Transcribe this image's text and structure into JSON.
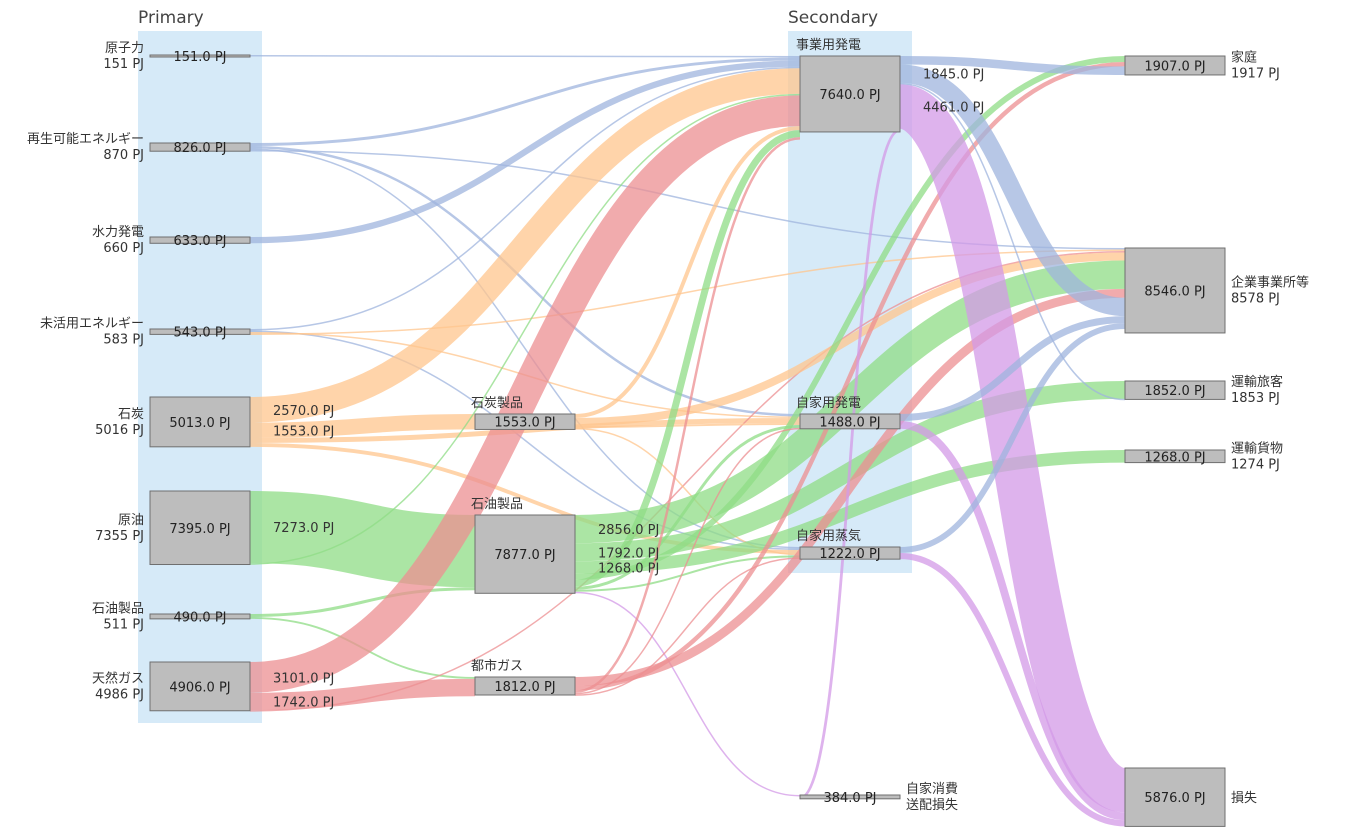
{
  "chart_data": {
    "type": "sankey",
    "column_titles": {
      "primary": "Primary",
      "secondary": "Secondary"
    },
    "colors": {
      "nuclear": "#9fb4dd",
      "coal": "#ffc68e",
      "oil": "#8fdc86",
      "gas": "#ec8f92",
      "loss": "#d39ae7",
      "column_band": "#d6eaf8",
      "node": "#bdbdbd"
    },
    "nodes": [
      {
        "id": "nuclear",
        "name": "原子力",
        "total": "151 PJ",
        "value": "151.0 PJ"
      },
      {
        "id": "renewable",
        "name": "再生可能エネルギー",
        "total": "870 PJ",
        "value": "826.0 PJ"
      },
      {
        "id": "hydro",
        "name": "水力発電",
        "total": "660 PJ",
        "value": "633.0 PJ"
      },
      {
        "id": "unused",
        "name": "未活用エネルギー",
        "total": "583 PJ",
        "value": "543.0 PJ"
      },
      {
        "id": "coal",
        "name": "石炭",
        "total": "5016 PJ",
        "value": "5013.0 PJ"
      },
      {
        "id": "crude",
        "name": "原油",
        "total": "7355 PJ",
        "value": "7395.0 PJ"
      },
      {
        "id": "oilprod_in",
        "name": "石油製品",
        "total": "511 PJ",
        "value": "490.0 PJ"
      },
      {
        "id": "natgas",
        "name": "天然ガス",
        "total": "4986 PJ",
        "value": "4906.0 PJ"
      },
      {
        "id": "coalprod",
        "name": "石炭製品",
        "total": "",
        "value": "1553.0 PJ"
      },
      {
        "id": "oilprod",
        "name": "石油製品",
        "total": "",
        "value": "7877.0 PJ"
      },
      {
        "id": "citygas",
        "name": "都市ガス",
        "total": "",
        "value": "1812.0 PJ"
      },
      {
        "id": "utility",
        "name": "事業用発電",
        "total": "",
        "value": "7640.0 PJ"
      },
      {
        "id": "privgen",
        "name": "自家用発電",
        "total": "",
        "value": "1488.0 PJ"
      },
      {
        "id": "privsteam",
        "name": "自家用蒸気",
        "total": "",
        "value": "1222.0 PJ"
      },
      {
        "id": "selfuse",
        "name": "自家消費",
        "name2": "送配損失",
        "total": "",
        "value": "384.0 PJ"
      },
      {
        "id": "home",
        "name": "家庭",
        "total": "1917 PJ",
        "value": "1907.0 PJ"
      },
      {
        "id": "business",
        "name": "企業事業所等",
        "total": "8578 PJ",
        "value": "8546.0 PJ"
      },
      {
        "id": "passenger",
        "name": "運輸旅客",
        "total": "1853 PJ",
        "value": "1852.0 PJ"
      },
      {
        "id": "freight",
        "name": "運輸貨物",
        "total": "1274 PJ",
        "value": "1268.0 PJ"
      },
      {
        "id": "loss",
        "name": "損失",
        "total": "",
        "value": "5876.0 PJ"
      }
    ],
    "flows": [
      {
        "source": "nuclear",
        "target": "utility",
        "value": 151,
        "color": "nuclear"
      },
      {
        "source": "renewable",
        "target": "utility",
        "value": 300,
        "color": "nuclear"
      },
      {
        "source": "renewable",
        "target": "privgen",
        "value": 250,
        "color": "nuclear"
      },
      {
        "source": "renewable",
        "target": "privsteam",
        "value": 150,
        "color": "nuclear"
      },
      {
        "source": "renewable",
        "target": "business",
        "value": 126,
        "color": "nuclear"
      },
      {
        "source": "hydro",
        "target": "utility",
        "value": 633,
        "color": "nuclear"
      },
      {
        "source": "unused",
        "target": "utility",
        "value": 150,
        "color": "nuclear"
      },
      {
        "source": "unused",
        "target": "privsteam",
        "value": 150,
        "color": "nuclear"
      },
      {
        "source": "unused",
        "target": "privgen",
        "value": 120,
        "color": "coal"
      },
      {
        "source": "unused",
        "target": "business",
        "value": 123,
        "color": "coal"
      },
      {
        "source": "coal",
        "target": "utility",
        "value": 2570,
        "color": "coal",
        "label": "2570.0 PJ"
      },
      {
        "source": "coal",
        "target": "coalprod",
        "value": 1553,
        "color": "coal",
        "label": "1553.0 PJ"
      },
      {
        "source": "coal",
        "target": "privgen",
        "value": 500,
        "color": "coal"
      },
      {
        "source": "coal",
        "target": "privsteam",
        "value": 390,
        "color": "coal"
      },
      {
        "source": "crude",
        "target": "oilprod",
        "value": 7273,
        "color": "oil",
        "label": "7273.0 PJ"
      },
      {
        "source": "crude",
        "target": "utility",
        "value": 122,
        "color": "oil"
      },
      {
        "source": "oilprod_in",
        "target": "oilprod",
        "value": 300,
        "color": "oil"
      },
      {
        "source": "oilprod_in",
        "target": "citygas",
        "value": 190,
        "color": "oil"
      },
      {
        "source": "natgas",
        "target": "utility",
        "value": 3101,
        "color": "gas",
        "label": "3101.0 PJ"
      },
      {
        "source": "natgas",
        "target": "citygas",
        "value": 1742,
        "color": "gas",
        "label": "1742.0 PJ"
      },
      {
        "source": "natgas",
        "target": "business",
        "value": 63,
        "color": "gas"
      },
      {
        "source": "coalprod",
        "target": "utility",
        "value": 400,
        "color": "coal"
      },
      {
        "source": "coalprod",
        "target": "business",
        "value": 800,
        "color": "coal"
      },
      {
        "source": "coalprod",
        "target": "privgen",
        "value": 200,
        "color": "coal"
      },
      {
        "source": "coalprod",
        "target": "privsteam",
        "value": 153,
        "color": "coal"
      },
      {
        "source": "oilprod",
        "target": "business",
        "value": 2856,
        "color": "oil",
        "label": "2856.0 PJ"
      },
      {
        "source": "oilprod",
        "target": "passenger",
        "value": 1792,
        "color": "oil",
        "label": "1792.0 PJ"
      },
      {
        "source": "oilprod",
        "target": "freight",
        "value": 1268,
        "color": "oil",
        "label": "1268.0 PJ"
      },
      {
        "source": "oilprod",
        "target": "home",
        "value": 600,
        "color": "oil"
      },
      {
        "source": "oilprod",
        "target": "utility",
        "value": 700,
        "color": "oil"
      },
      {
        "source": "oilprod",
        "target": "privgen",
        "value": 300,
        "color": "oil"
      },
      {
        "source": "oilprod",
        "target": "privsteam",
        "value": 200,
        "color": "oil"
      },
      {
        "source": "oilprod",
        "target": "selfuse",
        "value": 100,
        "color": "loss"
      },
      {
        "source": "citygas",
        "target": "business",
        "value": 900,
        "color": "gas"
      },
      {
        "source": "citygas",
        "target": "home",
        "value": 450,
        "color": "gas"
      },
      {
        "source": "citygas",
        "target": "utility",
        "value": 250,
        "color": "gas"
      },
      {
        "source": "citygas",
        "target": "privgen",
        "value": 112,
        "color": "gas"
      },
      {
        "source": "citygas",
        "target": "privsteam",
        "value": 100,
        "color": "gas"
      },
      {
        "source": "utility",
        "target": "home",
        "value": 857,
        "color": "nuclear"
      },
      {
        "source": "utility",
        "target": "business",
        "value": 1845,
        "color": "nuclear",
        "label": "1845.0 PJ"
      },
      {
        "source": "utility",
        "target": "passenger",
        "value": 60,
        "color": "nuclear"
      },
      {
        "source": "utility",
        "target": "loss",
        "value": 4461,
        "color": "loss",
        "label": "4461.0 PJ"
      },
      {
        "source": "utility",
        "target": "selfuse",
        "value": 284,
        "color": "loss"
      },
      {
        "source": "privgen",
        "target": "business",
        "value": 700,
        "color": "nuclear"
      },
      {
        "source": "privgen",
        "target": "loss",
        "value": 788,
        "color": "loss"
      },
      {
        "source": "privsteam",
        "target": "business",
        "value": 595,
        "color": "nuclear"
      },
      {
        "source": "privsteam",
        "target": "loss",
        "value": 627,
        "color": "loss"
      }
    ]
  }
}
